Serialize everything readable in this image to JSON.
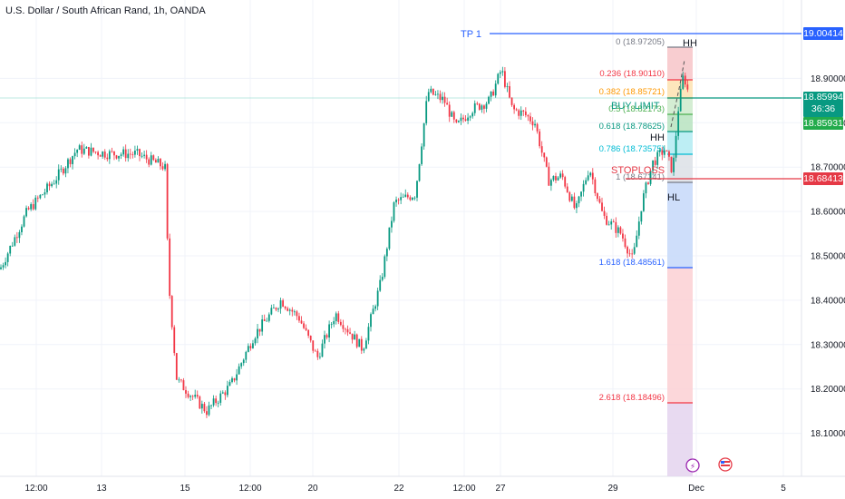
{
  "header": {
    "title": "U.S. Dollar / South African Rand, 1h, OANDA"
  },
  "colors": {
    "up": "#089981",
    "down": "#f23645",
    "tp": "#2962ff",
    "stop": "#e53946",
    "buy": "#089981",
    "last": "#089981"
  },
  "chart_data": {
    "type": "candlestick",
    "ylim": [
      18.04,
      19.05
    ],
    "yticks": [
      "18.90000",
      "18.80000",
      "18.70000",
      "18.60000",
      "18.50000",
      "18.40000",
      "18.30000",
      "18.20000",
      "18.10000"
    ],
    "xticks": [
      "12:00",
      "13",
      "15",
      "12:00",
      "20",
      "22",
      "12:00",
      "27",
      "29",
      "Dec",
      "5"
    ],
    "anchors": [
      [
        0,
        18.47
      ],
      [
        30,
        18.6
      ],
      [
        60,
        18.67
      ],
      [
        85,
        18.74
      ],
      [
        120,
        18.73
      ],
      [
        150,
        18.73
      ],
      [
        182,
        18.7
      ],
      [
        186,
        18.44
      ],
      [
        195,
        18.22
      ],
      [
        228,
        18.15
      ],
      [
        255,
        18.21
      ],
      [
        280,
        18.32
      ],
      [
        310,
        18.4
      ],
      [
        330,
        18.36
      ],
      [
        350,
        18.27
      ],
      [
        370,
        18.37
      ],
      [
        385,
        18.33
      ],
      [
        400,
        18.29
      ],
      [
        420,
        18.44
      ],
      [
        435,
        18.62
      ],
      [
        458,
        18.64
      ],
      [
        472,
        18.87
      ],
      [
        490,
        18.85
      ],
      [
        503,
        18.79
      ],
      [
        520,
        18.83
      ],
      [
        540,
        18.85
      ],
      [
        553,
        18.92
      ],
      [
        565,
        18.83
      ],
      [
        578,
        18.82
      ],
      [
        590,
        18.8
      ],
      [
        605,
        18.67
      ],
      [
        620,
        18.68
      ],
      [
        635,
        18.6
      ],
      [
        650,
        18.7
      ],
      [
        665,
        18.59
      ],
      [
        685,
        18.55
      ],
      [
        698,
        18.49
      ],
      [
        708,
        18.62
      ],
      [
        720,
        18.71
      ],
      [
        733,
        18.74
      ],
      [
        742,
        18.69
      ],
      [
        748,
        18.83
      ],
      [
        754,
        18.91
      ],
      [
        760,
        18.86
      ]
    ],
    "levels": {
      "tp1": {
        "label": "TP 1",
        "price": "19.00414"
      },
      "last_price": {
        "price": "18.85994",
        "countdown": "36:36"
      },
      "buy_limit": {
        "label": "BUY LIMIT",
        "price": "18.85931"
      },
      "stoploss": {
        "label": "STOPLOSS",
        "price": "18.68413"
      }
    },
    "fib": [
      {
        "level": "0",
        "value": "18.97205"
      },
      {
        "level": "0.236",
        "value": "18.90110"
      },
      {
        "level": "0.382",
        "value": "18.85721"
      },
      {
        "level": "0.5",
        "value": "18.82173"
      },
      {
        "level": "0.618",
        "value": "18.78625"
      },
      {
        "level": "0.786",
        "value": "18.73575"
      },
      {
        "level": "1",
        "value": "18.67141"
      },
      {
        "level": "1.618",
        "value": "18.48561"
      },
      {
        "level": "2.618",
        "value": "18.18496"
      }
    ],
    "annotations": [
      "HH",
      "HH",
      "HL"
    ]
  }
}
